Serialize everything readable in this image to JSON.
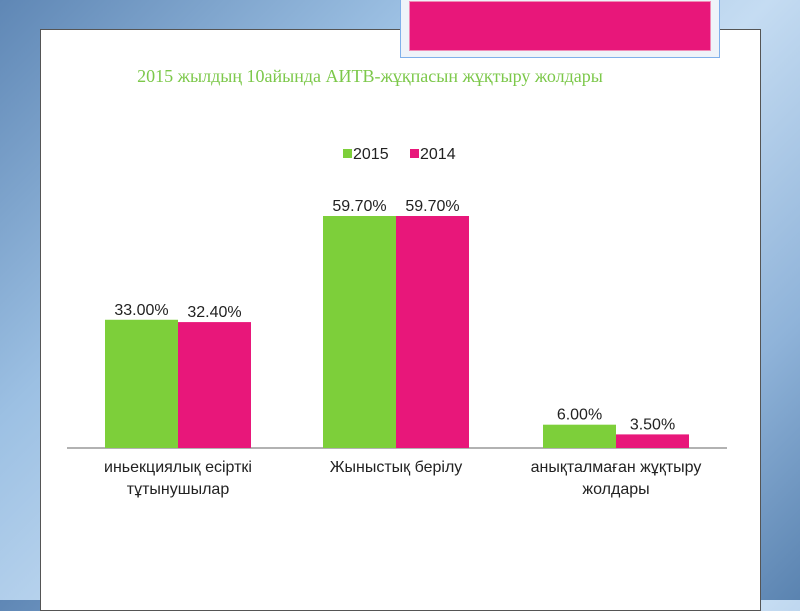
{
  "chart_data": {
    "type": "bar",
    "title": "2015 жылдың 10айында АИТВ-жұқпасын жұқтыру жолдары",
    "categories": [
      [
        "иньекциялық есірткі",
        "тұтынушылар"
      ],
      [
        "Жыныстық берілу"
      ],
      [
        "анықталмаған жұқтыру",
        "жолдары"
      ]
    ],
    "series": [
      {
        "name": "2015",
        "color": "#7dcf3a",
        "values": [
          33.0,
          59.7,
          6.0
        ],
        "labels": [
          "33.00%",
          "59.70%",
          "6.00%"
        ]
      },
      {
        "name": "2014",
        "color": "#e8177a",
        "values": [
          32.4,
          59.7,
          3.5
        ],
        "labels": [
          "32.40%",
          "59.70%",
          "3.50%"
        ]
      }
    ],
    "legend_position": "top",
    "grid": false,
    "ylim": [
      0,
      70
    ]
  }
}
